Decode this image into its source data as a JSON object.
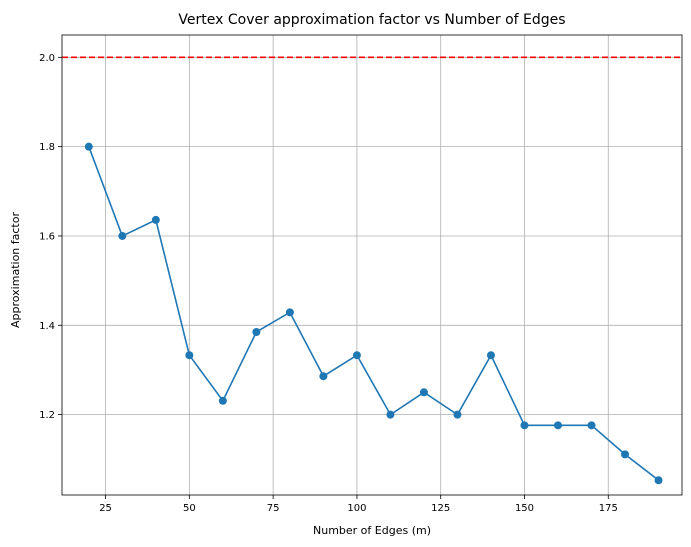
{
  "chart_data": {
    "type": "line",
    "title": "Vertex Cover approximation factor vs Number of Edges",
    "xlabel": "Number of Edges (m)",
    "ylabel": "Approximation factor",
    "xlim": [
      12,
      197
    ],
    "ylim": [
      1.02,
      2.05
    ],
    "xticks": [
      25,
      50,
      75,
      100,
      125,
      150,
      175
    ],
    "yticks": [
      1.2,
      1.4,
      1.6,
      1.8,
      2.0
    ],
    "xtick_labels": [
      "25",
      "50",
      "75",
      "100",
      "125",
      "150",
      "175"
    ],
    "ytick_labels": [
      "1.2",
      "1.4",
      "1.6",
      "1.8",
      "2.0"
    ],
    "grid": true,
    "series": [
      {
        "color": "#1f77b4",
        "marker": "circle",
        "x": [
          20,
          30,
          40,
          50,
          60,
          70,
          80,
          90,
          100,
          110,
          120,
          130,
          140,
          150,
          160,
          170,
          180,
          190
        ],
        "y": [
          1.8,
          1.6,
          1.636,
          1.333,
          1.231,
          1.385,
          1.429,
          1.286,
          1.333,
          1.2,
          1.25,
          1.2,
          1.333,
          1.176,
          1.176,
          1.176,
          1.111,
          1.053
        ]
      }
    ],
    "reference_line": {
      "y": 2.0,
      "color": "#ff0000",
      "style": "dashed"
    }
  }
}
